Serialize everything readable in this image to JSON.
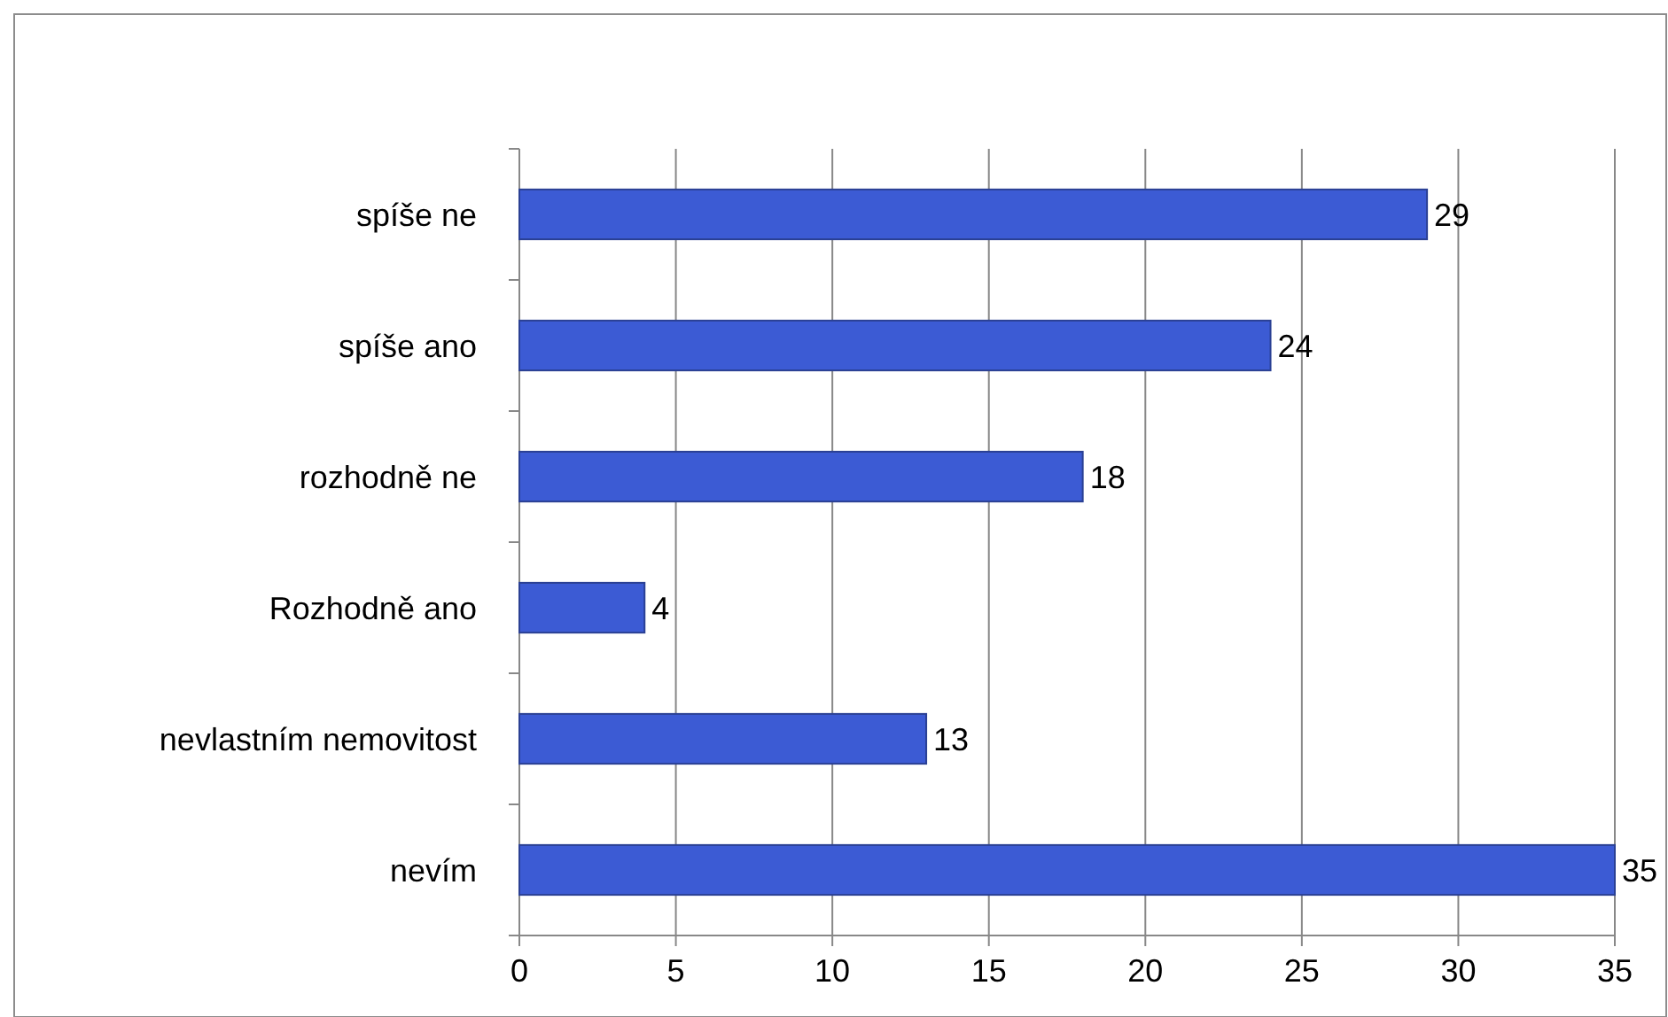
{
  "chart_data": {
    "type": "bar",
    "orientation": "horizontal",
    "categories": [
      "spíše ne",
      "spíše ano",
      "rozhodně ne",
      "Rozhodně ano",
      "nevlastním nemovitost",
      "nevím"
    ],
    "values": [
      29,
      24,
      18,
      4,
      13,
      35
    ],
    "color": "#3c5bd4",
    "xlim": [
      0,
      35
    ],
    "xticks": [
      0,
      5,
      10,
      15,
      20,
      25,
      30,
      35
    ],
    "grid": "x",
    "data_labels": true
  }
}
